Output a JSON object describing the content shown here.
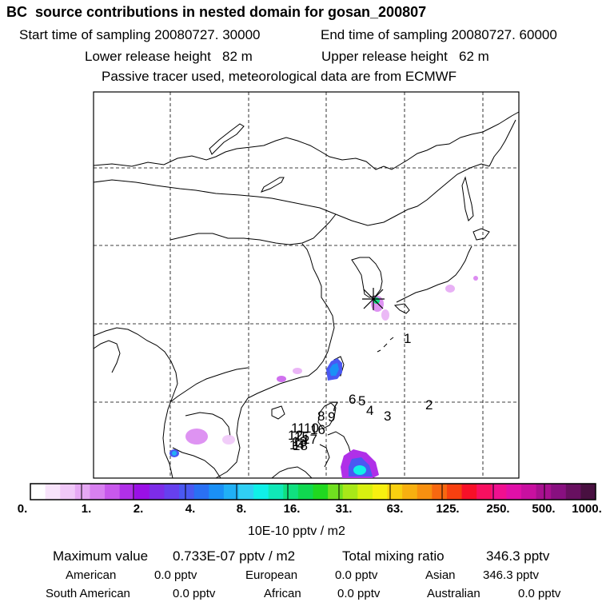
{
  "header": {
    "title": "BC  source contributions in nested domain for gosan_200807",
    "start_label": "Start time of sampling 20080727. 30000",
    "end_label": "End time of sampling 20080727. 60000",
    "lower_label": "Lower release height   82 m",
    "upper_label": "Upper release height   62 m",
    "tracer_label": "Passive tracer used, meteorological data are from ECMWF"
  },
  "markers": [
    "1",
    "2",
    "3",
    "4",
    "5",
    "6",
    "7",
    "8",
    "9",
    "10",
    "11",
    "12",
    "13",
    "14",
    "15",
    "16",
    "17",
    "18"
  ],
  "colorbar": {
    "ticks": [
      "0.",
      "1.",
      "2.",
      "4.",
      "8.",
      "16.",
      "31.",
      "63.",
      "125.",
      "250.",
      "500.",
      "1000."
    ],
    "unit": "10E-10 pptv / m2",
    "colors": [
      "#ffffff",
      "#f8e4fb",
      "#f0c8f8",
      "#e6a8f4",
      "#d880f0",
      "#c858ec",
      "#b030e8",
      "#9a10e6",
      "#7d2ce8",
      "#6640ee",
      "#4a58f2",
      "#2a70f4",
      "#1a90f6",
      "#20b0f6",
      "#30d0f4",
      "#10f0e8",
      "#10e8b8",
      "#10e080",
      "#10d850",
      "#20d820",
      "#70e020",
      "#a8e818",
      "#d8f010",
      "#f8f010",
      "#f8d010",
      "#f8b010",
      "#f89010",
      "#f86810",
      "#f84010",
      "#f81028",
      "#f81060",
      "#f01090",
      "#e010a8",
      "#c810a0",
      "#a81090",
      "#881080",
      "#681060",
      "#481040"
    ]
  },
  "stats": {
    "max_label": "Maximum value",
    "max_value": "0.733E-07 pptv / m2",
    "total_label": "Total mixing ratio",
    "total_value": "346.3 pptv",
    "american_label": "American",
    "american_value": "0.0 pptv",
    "european_label": "European",
    "european_value": "0.0 pptv",
    "asian_label": "Asian",
    "asian_value": "346.3 pptv",
    "south_american_label": "South American",
    "south_american_value": "0.0 pptv",
    "african_label": "African",
    "african_value": "0.0 pptv",
    "australian_label": "Australian",
    "australian_value": "0.0 pptv"
  }
}
